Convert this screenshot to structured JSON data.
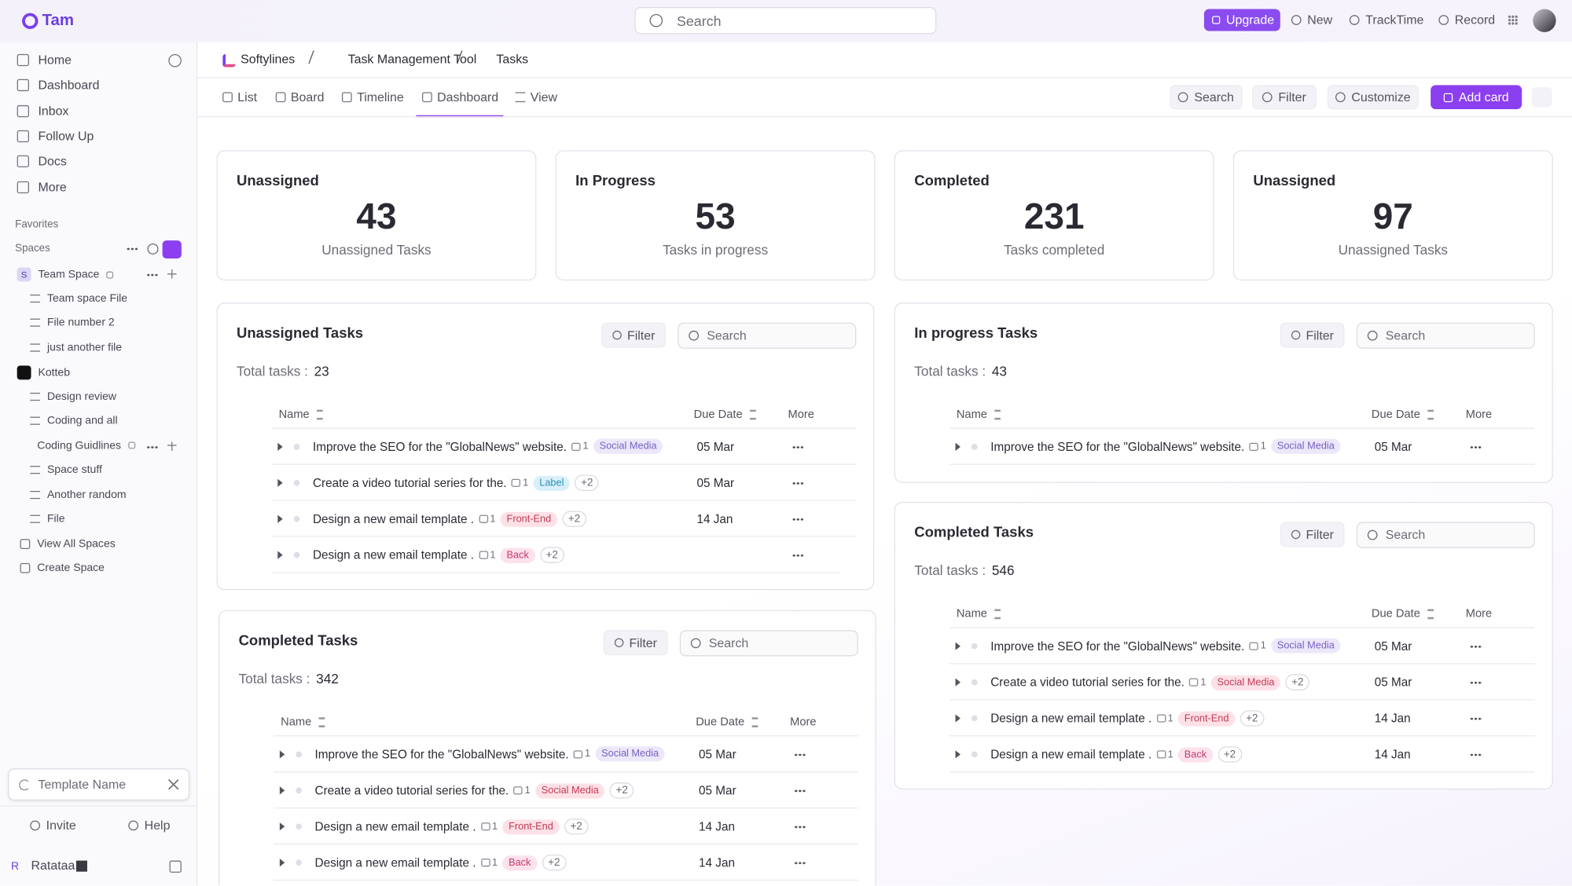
{
  "topbar": {
    "logo": "Tam",
    "search": "Search",
    "upgrade": "Upgrade",
    "new": "New",
    "tracktime": "TrackTime",
    "record": "Record"
  },
  "sidebar": {
    "nav": [
      "Home",
      "Dashboard",
      "Inbox",
      "Follow Up",
      "Docs",
      "More"
    ],
    "favorites": "Favorites",
    "spaces": "Spaces",
    "tree": [
      {
        "label": "Team Space",
        "badge": "S",
        "level": 0,
        "lock": true,
        "actions": true
      },
      {
        "label": "Team space File",
        "level": 1
      },
      {
        "label": "File number 2",
        "level": 1
      },
      {
        "label": "just another file",
        "level": 1
      },
      {
        "label": "Kotteb",
        "level": 0,
        "dark": true
      },
      {
        "label": "Design review",
        "level": 1
      },
      {
        "label": "Coding and all",
        "level": 1
      },
      {
        "label": "Coding Guidlines",
        "level": 2,
        "lock": true,
        "actions": true
      },
      {
        "label": "Space stuff",
        "level": 1
      },
      {
        "label": "Another random",
        "level": 1
      },
      {
        "label": "File",
        "level": 1
      },
      {
        "label": "View All Spaces",
        "level": 3
      },
      {
        "label": "Create Space",
        "level": 3
      }
    ],
    "template": "Template Name",
    "invite": "Invite",
    "help": "Help",
    "user_initial": "R",
    "user": "Ratataa"
  },
  "breadcrumb": [
    "Softylines",
    "Task Management Tool",
    "Tasks"
  ],
  "tabs": [
    "List",
    "Board",
    "Timeline",
    "Dashboard",
    "View"
  ],
  "actions": {
    "search": "Search",
    "filter": "Filter",
    "customize": "Customize",
    "add": "Add card"
  },
  "stats": [
    {
      "title": "Unassigned",
      "value": "43",
      "caption": "Unassigned Tasks"
    },
    {
      "title": "In Progress",
      "value": "53",
      "caption": "Tasks in progress"
    },
    {
      "title": "Completed",
      "value": "231",
      "caption": "Tasks completed"
    },
    {
      "title": "Unassigned",
      "value": "97",
      "caption": "Unassigned Tasks"
    }
  ],
  "panels": [
    {
      "title": "Unassigned Tasks",
      "filter": "Filter",
      "search": "Search",
      "total_label": "Total tasks :",
      "total": "23",
      "columns": [
        "Name",
        "Due Date",
        "More"
      ],
      "rows": [
        {
          "name": "Improve the SEO for the \"GlobalNews\" website.",
          "count": "1",
          "tag": "Social Media",
          "tag_color": "#7a62c0",
          "tag_bg": "#ece7fa",
          "due": "05 Mar"
        },
        {
          "name": "Create a video tutorial series for the.",
          "count": "1",
          "tag": "Label",
          "tag_color": "#2c8fb9",
          "tag_bg": "#d9f0fa",
          "extra": "+2",
          "due": "05 Mar"
        },
        {
          "name": "Design a new email template .",
          "count": "1",
          "tag": "Front-End",
          "tag_color": "#c23a55",
          "tag_bg": "#fde1e7",
          "extra": "+2",
          "due": "14 Jan"
        },
        {
          "name": "Design a new email template .",
          "count": "1",
          "tag": "Back",
          "tag_color": "#c23a6a",
          "tag_bg": "#fde1ec",
          "extra": "+2"
        }
      ]
    },
    {
      "title": "Completed Tasks",
      "filter": "Filter",
      "search": "Search",
      "total_label": "Total tasks :",
      "total": "342",
      "columns": [
        "Name",
        "Due Date",
        "More"
      ],
      "rows": [
        {
          "name": "Improve the SEO for the \"GlobalNews\" website.",
          "count": "1",
          "tag": "Social Media",
          "tag_color": "#7a62c0",
          "tag_bg": "#ece7fa",
          "due": "05 Mar"
        },
        {
          "name": "Create a video tutorial series for the.",
          "count": "1",
          "tag": "Social Media",
          "tag_color": "#c23a55",
          "tag_bg": "#fde1e7",
          "extra": "+2",
          "due": "05 Mar"
        },
        {
          "name": "Design a new email template .",
          "count": "1",
          "tag": "Front-End",
          "tag_color": "#c23a55",
          "tag_bg": "#fde1e7",
          "extra": "+2",
          "due": "14 Jan"
        },
        {
          "name": "Design a new email template .",
          "count": "1",
          "tag": "Back",
          "tag_color": "#c23a6a",
          "tag_bg": "#fde1ec",
          "extra": "+2",
          "due": "14 Jan"
        }
      ]
    },
    {
      "title": "In progress Tasks",
      "filter": "Filter",
      "search": "Search",
      "total_label": "Total tasks :",
      "total": "43",
      "columns": [
        "Name",
        "Due Date",
        "More"
      ],
      "rows": [
        {
          "name": "Improve the SEO for the \"GlobalNews\" website.",
          "count": "1",
          "tag": "Social Media",
          "tag_color": "#7a62c0",
          "tag_bg": "#ece7fa",
          "due": "05 Mar"
        }
      ]
    },
    {
      "title": "Completed Tasks",
      "filter": "Filter",
      "search": "Search",
      "total_label": "Total tasks :",
      "total": "546",
      "columns": [
        "Name",
        "Due Date",
        "More"
      ],
      "rows": [
        {
          "name": "Improve the SEO for the \"GlobalNews\" website.",
          "count": "1",
          "tag": "Social Media",
          "tag_color": "#7a62c0",
          "tag_bg": "#ece7fa",
          "due": "05 Mar"
        },
        {
          "name": "Create a video tutorial series for the.",
          "count": "1",
          "tag": "Social Media",
          "tag_color": "#c23a55",
          "tag_bg": "#fde1e7",
          "extra": "+2",
          "due": "05 Mar"
        },
        {
          "name": "Design a new email template .",
          "count": "1",
          "tag": "Front-End",
          "tag_color": "#c23a55",
          "tag_bg": "#fde1e7",
          "extra": "+2",
          "due": "14 Jan"
        },
        {
          "name": "Design a new email template .",
          "count": "1",
          "tag": "Back",
          "tag_color": "#c23a6a",
          "tag_bg": "#fde1ec",
          "extra": "+2",
          "due": "14 Jan"
        }
      ]
    }
  ]
}
